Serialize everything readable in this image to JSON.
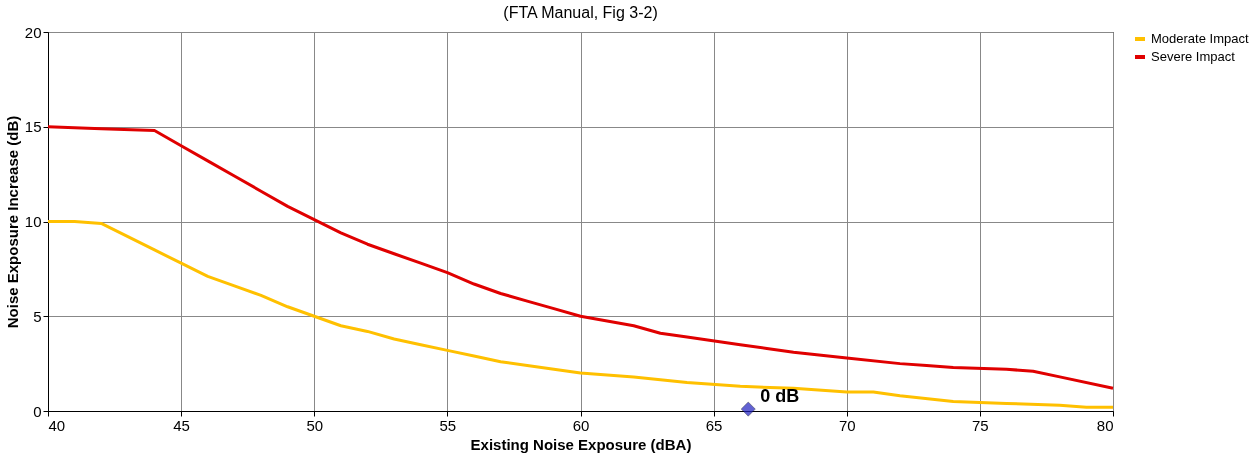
{
  "chart_data": {
    "type": "line",
    "title": "(FTA Manual, Fig 3-2)",
    "xlabel": "Existing Noise Exposure (dBA)",
    "ylabel": "Noise Exposure Increase (dB)",
    "xlim": [
      40,
      80
    ],
    "xticks": [
      40,
      45,
      50,
      55,
      60,
      65,
      70,
      75,
      80
    ],
    "ylim": [
      0,
      20
    ],
    "yticks": [
      0,
      5,
      10,
      15,
      20
    ],
    "grid": true,
    "legend": "right",
    "series": [
      {
        "name": "Moderate Impact",
        "color": "#ffc000",
        "x": [
          40,
          41,
          42,
          43,
          44,
          45,
          46,
          47,
          48,
          49,
          50,
          51,
          52,
          53,
          54,
          55,
          56,
          57,
          58,
          59,
          60,
          62,
          64,
          66,
          68,
          70,
          71,
          72,
          74,
          76,
          78,
          79,
          80
        ],
        "values": [
          10,
          10,
          9.9,
          9.2,
          8.5,
          7.8,
          7.1,
          6.6,
          6.1,
          5.5,
          5,
          4.5,
          4.2,
          3.8,
          3.5,
          3.2,
          2.9,
          2.6,
          2.4,
          2.2,
          2,
          1.8,
          1.5,
          1.3,
          1.2,
          1,
          1,
          0.8,
          0.5,
          0.4,
          0.3,
          0.2,
          0.2
        ]
      },
      {
        "name": "Severe Impact",
        "color": "#e00000",
        "x": [
          40,
          42,
          44,
          45,
          46,
          47,
          48,
          49,
          50,
          51,
          52,
          53,
          54,
          55,
          56,
          57,
          58,
          59,
          60,
          62,
          63,
          64,
          66,
          67,
          68,
          70,
          72,
          73,
          74,
          76,
          77,
          78,
          80
        ],
        "values": [
          15,
          14.9,
          14.8,
          14,
          13.2,
          12.4,
          11.6,
          10.8,
          10.1,
          9.4,
          8.8,
          8.3,
          7.8,
          7.3,
          6.7,
          6.2,
          5.8,
          5.4,
          5,
          4.5,
          4.1,
          3.9,
          3.5,
          3.3,
          3.1,
          2.8,
          2.5,
          2.4,
          2.3,
          2.2,
          2.1,
          1.8,
          1.2
        ]
      },
      {
        "type": "scatter",
        "color": "#1f1fbf",
        "marker": "diamond",
        "x": [
          66.3
        ],
        "values": [
          0.1
        ]
      }
    ],
    "annotations": [
      {
        "text": "0 dB",
        "x": 66.3,
        "y": 0.1
      }
    ]
  }
}
